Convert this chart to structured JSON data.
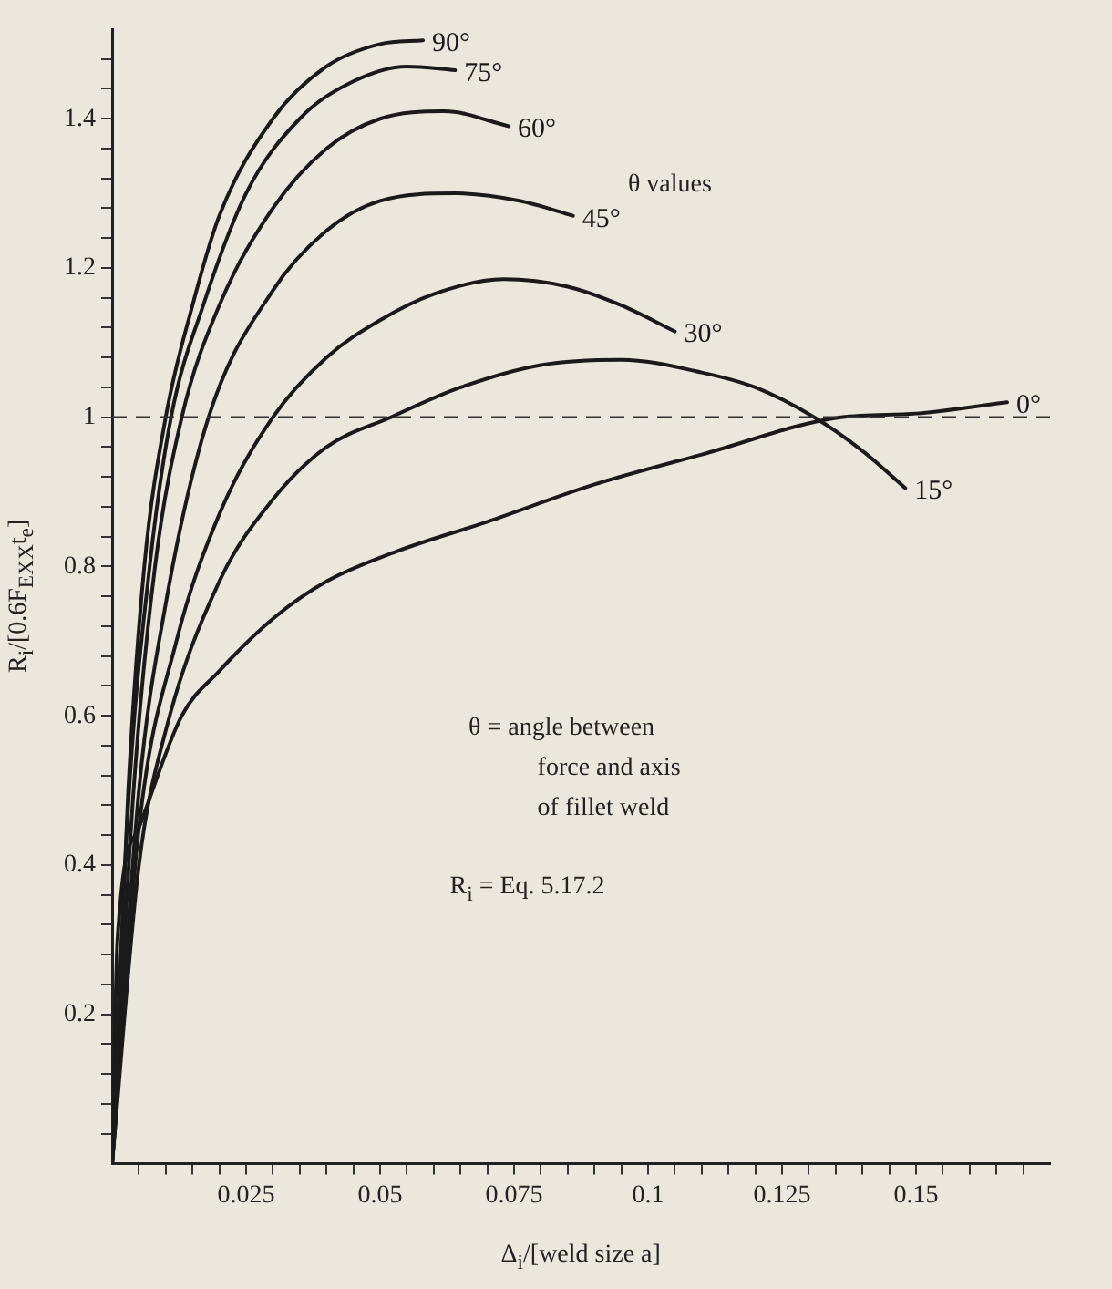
{
  "chart_data": {
    "type": "line",
    "xlabel": "Δ$_{i}$/[weld size a]",
    "ylabel": "R$_{i}$/[0.6F$_{EXX}$t$_{e}$]",
    "xlim": [
      0,
      0.175
    ],
    "ylim": [
      0,
      1.52
    ],
    "xticks": [
      {
        "value": 0.005,
        "label": null
      },
      {
        "value": 0.01,
        "label": null
      },
      {
        "value": 0.015,
        "label": null
      },
      {
        "value": 0.02,
        "label": null
      },
      0.025,
      {
        "value": 0.03,
        "label": null
      },
      {
        "value": 0.035,
        "label": null
      },
      {
        "value": 0.04,
        "label": null
      },
      {
        "value": 0.045,
        "label": null
      },
      0.05,
      {
        "value": 0.055,
        "label": null
      },
      {
        "value": 0.06,
        "label": null
      },
      {
        "value": 0.065,
        "label": null
      },
      {
        "value": 0.07,
        "label": null
      },
      0.075,
      {
        "value": 0.08,
        "label": null
      },
      {
        "value": 0.085,
        "label": null
      },
      {
        "value": 0.09,
        "label": null
      },
      {
        "value": 0.095,
        "label": null
      },
      0.1,
      {
        "value": 0.105,
        "label": null
      },
      {
        "value": 0.11,
        "label": null
      },
      {
        "value": 0.115,
        "label": null
      },
      {
        "value": 0.12,
        "label": null
      },
      0.125,
      {
        "value": 0.13,
        "label": null
      },
      {
        "value": 0.135,
        "label": null
      },
      {
        "value": 0.14,
        "label": null
      },
      {
        "value": 0.145,
        "label": null
      },
      0.15,
      {
        "value": 0.155,
        "label": null
      },
      {
        "value": 0.16,
        "label": null
      },
      {
        "value": 0.165,
        "label": null
      },
      {
        "value": 0.17,
        "label": null
      }
    ],
    "yticks": [
      {
        "value": 0.04,
        "label": null
      },
      {
        "value": 0.08,
        "label": null
      },
      {
        "value": 0.12,
        "label": null
      },
      {
        "value": 0.16,
        "label": null
      },
      0.2,
      {
        "value": 0.24,
        "label": null
      },
      {
        "value": 0.28,
        "label": null
      },
      {
        "value": 0.32,
        "label": null
      },
      {
        "value": 0.36,
        "label": null
      },
      0.4,
      {
        "value": 0.44,
        "label": null
      },
      {
        "value": 0.48,
        "label": null
      },
      {
        "value": 0.52,
        "label": null
      },
      {
        "value": 0.56,
        "label": null
      },
      0.6,
      {
        "value": 0.64,
        "label": null
      },
      {
        "value": 0.68,
        "label": null
      },
      {
        "value": 0.72,
        "label": null
      },
      {
        "value": 0.76,
        "label": null
      },
      0.8,
      {
        "value": 0.84,
        "label": null
      },
      {
        "value": 0.88,
        "label": null
      },
      {
        "value": 0.92,
        "label": null
      },
      {
        "value": 0.96,
        "label": null
      },
      1,
      {
        "value": 1.04,
        "label": null
      },
      {
        "value": 1.08,
        "label": null
      },
      {
        "value": 1.12,
        "label": null
      },
      {
        "value": 1.16,
        "label": null
      },
      1.2,
      {
        "value": 1.24,
        "label": null
      },
      {
        "value": 1.28,
        "label": null
      },
      {
        "value": 1.32,
        "label": null
      },
      {
        "value": 1.36,
        "label": null
      },
      1.4,
      {
        "value": 1.44,
        "label": null
      },
      {
        "value": 1.48,
        "label": null
      }
    ],
    "grid": false,
    "legend": false,
    "marker": "none",
    "line_style": "solid",
    "ref_lines": [
      {
        "axis": "y",
        "value": 1,
        "line_style": "dashed",
        "color": "#333333"
      }
    ],
    "annotations": [
      "θ values",
      "θ = angle between\nforce and axis\nof fillet weld",
      "R$_{i}$ = Eq. 5.17.2"
    ],
    "series": [
      {
        "name": "90°",
        "color": "#1a1a1a",
        "x": [
          0,
          0.003,
          0.006,
          0.01,
          0.015,
          0.02,
          0.03,
          0.04,
          0.05,
          0.058
        ],
        "values": [
          0,
          0.5,
          0.8,
          1.0,
          1.15,
          1.27,
          1.4,
          1.47,
          1.5,
          1.505
        ]
      },
      {
        "name": "75°",
        "color": "#1a1a1a",
        "x": [
          0,
          0.003,
          0.007,
          0.011,
          0.017,
          0.025,
          0.035,
          0.045,
          0.055,
          0.064
        ],
        "values": [
          0,
          0.48,
          0.8,
          1.0,
          1.15,
          1.3,
          1.4,
          1.45,
          1.47,
          1.465
        ]
      },
      {
        "name": "60°",
        "color": "#1a1a1a",
        "x": [
          0,
          0.004,
          0.008,
          0.013,
          0.02,
          0.03,
          0.04,
          0.05,
          0.062,
          0.074
        ],
        "values": [
          0,
          0.5,
          0.8,
          1.0,
          1.15,
          1.28,
          1.36,
          1.4,
          1.41,
          1.39
        ]
      },
      {
        "name": "45°",
        "color": "#1a1a1a",
        "x": [
          0,
          0.005,
          0.01,
          0.018,
          0.03,
          0.04,
          0.05,
          0.064,
          0.076,
          0.086
        ],
        "values": [
          0,
          0.5,
          0.75,
          1.0,
          1.17,
          1.25,
          1.29,
          1.3,
          1.29,
          1.27
        ]
      },
      {
        "name": "30°",
        "color": "#1a1a1a",
        "x": [
          0,
          0.005,
          0.012,
          0.02,
          0.03,
          0.04,
          0.05,
          0.06,
          0.073,
          0.085,
          0.095,
          0.105
        ],
        "values": [
          0,
          0.45,
          0.7,
          0.87,
          1.0,
          1.08,
          1.13,
          1.165,
          1.185,
          1.175,
          1.15,
          1.115
        ]
      },
      {
        "name": "15°",
        "color": "#1a1a1a",
        "x": [
          0,
          0.005,
          0.01,
          0.02,
          0.03,
          0.04,
          0.052,
          0.065,
          0.08,
          0.095,
          0.11,
          0.12,
          0.131,
          0.14,
          0.148
        ],
        "values": [
          0,
          0.4,
          0.58,
          0.78,
          0.89,
          0.96,
          1.0,
          1.04,
          1.07,
          1.077,
          1.06,
          1.04,
          1.0,
          0.955,
          0.905
        ]
      },
      {
        "name": "0°",
        "color": "#1a1a1a",
        "x": [
          0,
          0.001,
          0.005,
          0.013,
          0.02,
          0.03,
          0.04,
          0.053,
          0.07,
          0.09,
          0.11,
          0.136,
          0.15,
          0.167
        ],
        "values": [
          0,
          0.3,
          0.45,
          0.6,
          0.66,
          0.73,
          0.78,
          0.82,
          0.86,
          0.91,
          0.95,
          1.0,
          1.005,
          1.02
        ]
      }
    ]
  }
}
